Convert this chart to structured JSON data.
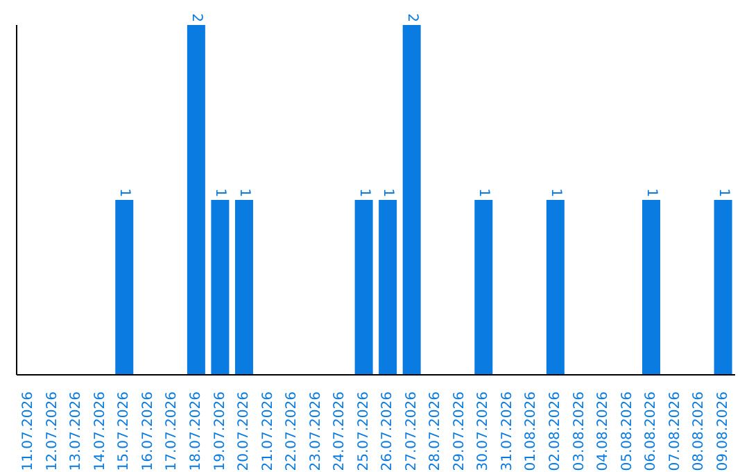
{
  "chart_data": {
    "type": "bar",
    "categories": [
      "11.07.2026",
      "12.07.2026",
      "13.07.2026",
      "14.07.2026",
      "15.07.2026",
      "16.07.2026",
      "17.07.2026",
      "18.07.2026",
      "19.07.2026",
      "20.07.2026",
      "21.07.2026",
      "22.07.2026",
      "23.07.2026",
      "24.07.2026",
      "25.07.2026",
      "26.07.2026",
      "27.07.2026",
      "28.07.2026",
      "29.07.2026",
      "30.07.2026",
      "31.07.2026",
      "01.08.2026",
      "02.08.2026",
      "03.08.2026",
      "04.08.2026",
      "05.08.2026",
      "06.08.2026",
      "07.08.2026",
      "08.08.2026",
      "09.08.2026"
    ],
    "values": [
      0,
      0,
      0,
      0,
      1,
      0,
      0,
      2,
      1,
      1,
      0,
      0,
      0,
      0,
      1,
      1,
      2,
      0,
      0,
      1,
      0,
      0,
      1,
      0,
      0,
      0,
      1,
      0,
      0,
      1
    ],
    "value_labels": [
      null,
      null,
      null,
      null,
      "1",
      null,
      null,
      "2",
      "1",
      "1",
      null,
      null,
      null,
      null,
      "1",
      "1",
      "2",
      null,
      null,
      "1",
      null,
      null,
      "1",
      null,
      null,
      null,
      "1",
      null,
      null,
      "1"
    ],
    "color": "#0a7be0",
    "tick_labels": "x"
  }
}
